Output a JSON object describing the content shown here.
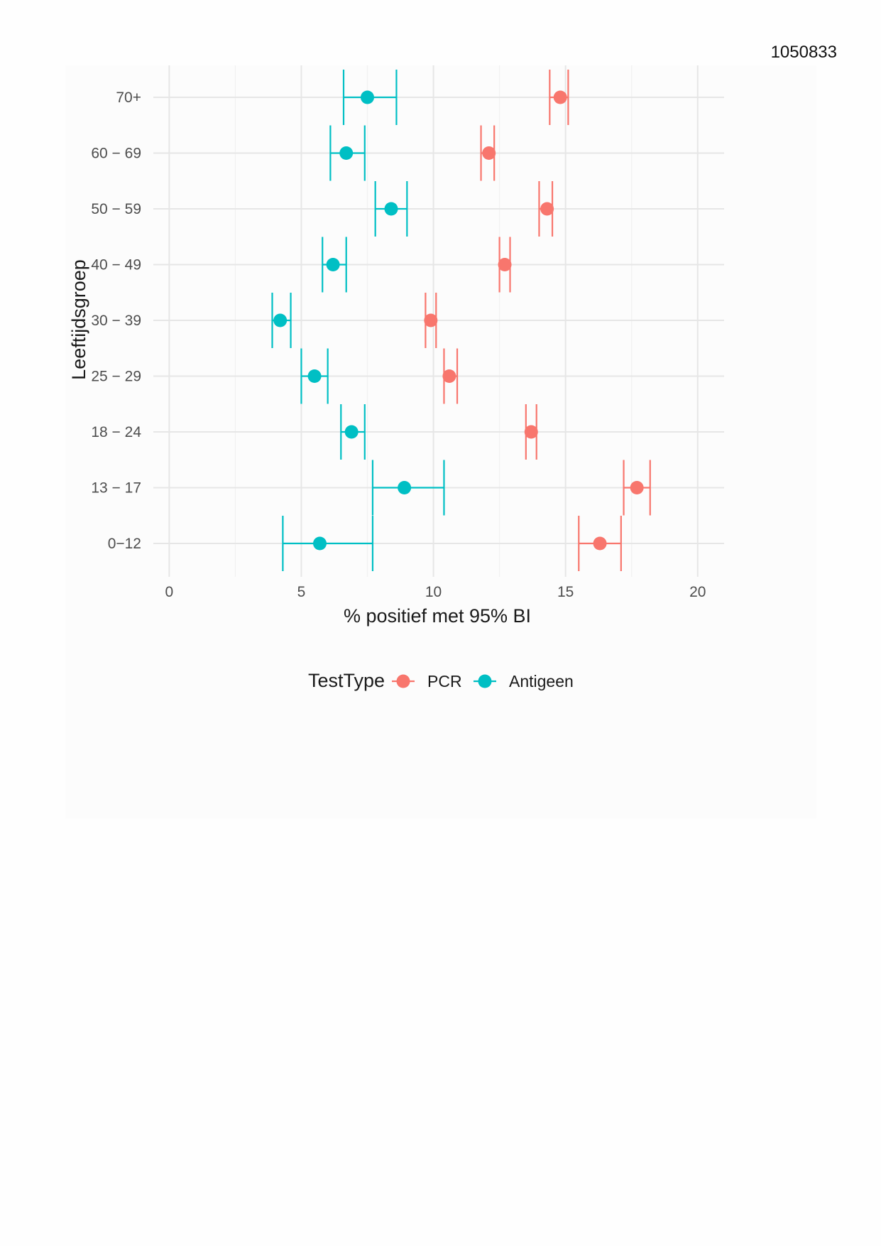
{
  "document": {
    "id": "1050833"
  },
  "chart_data": {
    "type": "dot-errorbar",
    "xlabel": "% positief met 95% BI",
    "ylabel": "Leeftijdsgroep",
    "xlim": [
      -0.6,
      21
    ],
    "xticks": [
      0,
      5,
      10,
      15,
      20
    ],
    "grid": true,
    "categories": [
      "70+",
      "60 − 69",
      "50 − 59",
      "40 − 49",
      "30 − 39",
      "25 − 29",
      "18 − 24",
      "13 − 17",
      "0−12"
    ],
    "legend": {
      "title": "TestType",
      "position": "bottom"
    },
    "series": [
      {
        "name": "PCR",
        "color": "#F8766D",
        "values": [
          14.8,
          12.1,
          14.3,
          12.7,
          9.9,
          10.6,
          13.7,
          17.7,
          16.3
        ],
        "lower": [
          14.4,
          11.8,
          14.0,
          12.5,
          9.7,
          10.4,
          13.5,
          17.2,
          15.5
        ],
        "upper": [
          15.1,
          12.3,
          14.5,
          12.9,
          10.1,
          10.9,
          13.9,
          18.2,
          17.1
        ]
      },
      {
        "name": "Antigeen",
        "color": "#00BFC4",
        "values": [
          7.5,
          6.7,
          8.4,
          6.2,
          4.2,
          5.5,
          6.9,
          8.9,
          5.7
        ],
        "lower": [
          6.6,
          6.1,
          7.8,
          5.8,
          3.9,
          5.0,
          6.5,
          7.7,
          4.3
        ],
        "upper": [
          8.6,
          7.4,
          9.0,
          6.7,
          4.6,
          6.0,
          7.4,
          10.4,
          7.7
        ]
      }
    ]
  }
}
